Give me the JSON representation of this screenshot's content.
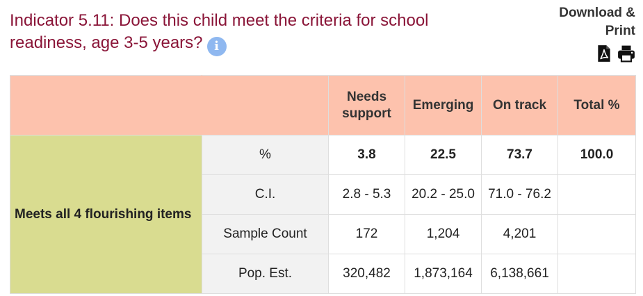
{
  "title": {
    "text": "Indicator 5.11: Does this child meet the criteria for school readiness, age 3-5 years?",
    "info_icon": "info-icon"
  },
  "download": {
    "label_line1": "Download &",
    "label_line2": "Print",
    "pdf_icon": "pdf-icon",
    "print_icon": "print-icon"
  },
  "table": {
    "columns": [
      "",
      "",
      "Needs support",
      "Emerging",
      "On track",
      "Total %"
    ],
    "group_label": "Meets all 4 flourishing items",
    "rows": [
      {
        "metric": "%",
        "values": [
          "3.8",
          "22.5",
          "73.7",
          "100.0"
        ]
      },
      {
        "metric": "C.I.",
        "values": [
          "2.8 - 5.3",
          "20.2 - 25.0",
          "71.0 - 76.2",
          ""
        ]
      },
      {
        "metric": "Sample Count",
        "values": [
          "172",
          "1,204",
          "4,201",
          ""
        ]
      },
      {
        "metric": "Pop. Est.",
        "values": [
          "320,482",
          "1,873,164",
          "6,138,661",
          ""
        ]
      }
    ]
  },
  "colors": {
    "title": "#8a1538",
    "header_bg": "#fdc2ad",
    "group_bg": "#d9dc90",
    "metric_bg": "#f2f2f2",
    "info_icon_bg": "#8fb8f0"
  }
}
